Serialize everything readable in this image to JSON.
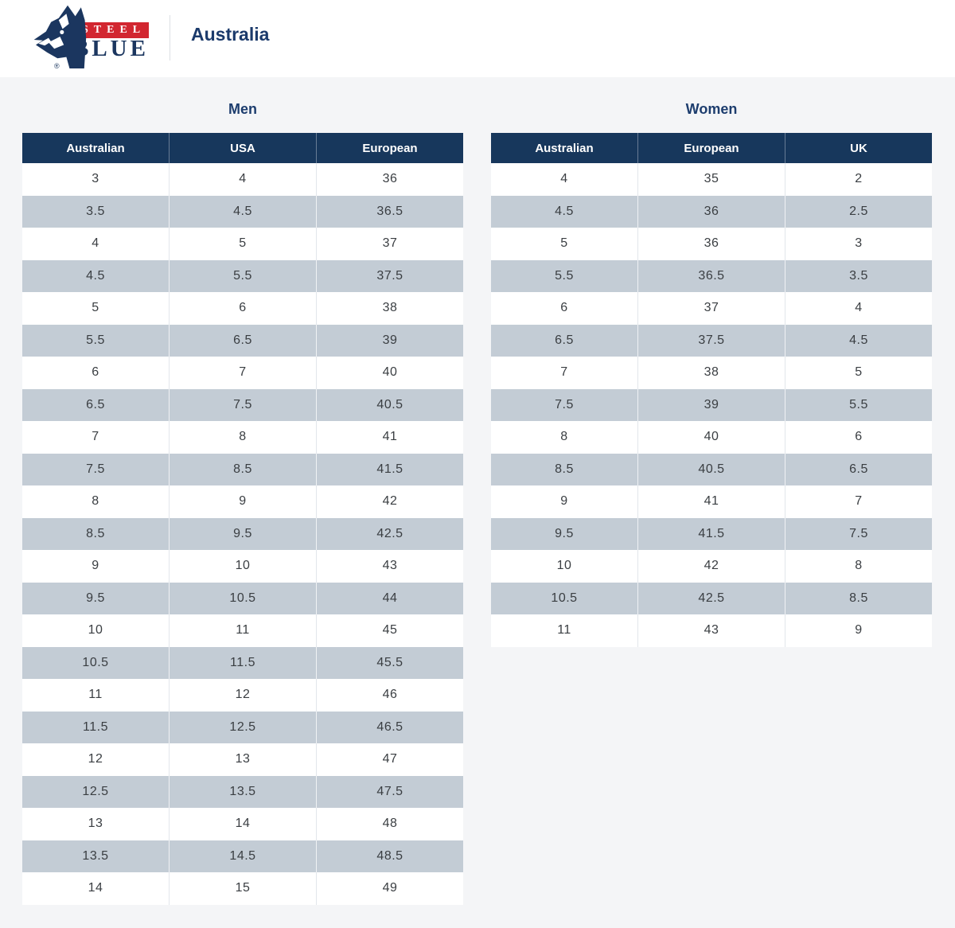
{
  "header": {
    "brand": {
      "steel": "STEEL",
      "blue": "BLUE",
      "registered": "®"
    },
    "region": "Australia"
  },
  "colors": {
    "brand_navy": "#1b365f",
    "brand_red": "#d22630",
    "table_header_bg": "#17375c",
    "alt_row_bg": "#c3ccd5",
    "page_bg": "#f4f5f7",
    "title_text": "#1d3d6e"
  },
  "tables": [
    {
      "title": "Men",
      "columns": [
        "Australian",
        "USA",
        "European"
      ],
      "rows": [
        [
          "3",
          "4",
          "36"
        ],
        [
          "3.5",
          "4.5",
          "36.5"
        ],
        [
          "4",
          "5",
          "37"
        ],
        [
          "4.5",
          "5.5",
          "37.5"
        ],
        [
          "5",
          "6",
          "38"
        ],
        [
          "5.5",
          "6.5",
          "39"
        ],
        [
          "6",
          "7",
          "40"
        ],
        [
          "6.5",
          "7.5",
          "40.5"
        ],
        [
          "7",
          "8",
          "41"
        ],
        [
          "7.5",
          "8.5",
          "41.5"
        ],
        [
          "8",
          "9",
          "42"
        ],
        [
          "8.5",
          "9.5",
          "42.5"
        ],
        [
          "9",
          "10",
          "43"
        ],
        [
          "9.5",
          "10.5",
          "44"
        ],
        [
          "10",
          "11",
          "45"
        ],
        [
          "10.5",
          "11.5",
          "45.5"
        ],
        [
          "11",
          "12",
          "46"
        ],
        [
          "11.5",
          "12.5",
          "46.5"
        ],
        [
          "12",
          "13",
          "47"
        ],
        [
          "12.5",
          "13.5",
          "47.5"
        ],
        [
          "13",
          "14",
          "48"
        ],
        [
          "13.5",
          "14.5",
          "48.5"
        ],
        [
          "14",
          "15",
          "49"
        ]
      ]
    },
    {
      "title": "Women",
      "columns": [
        "Australian",
        "European",
        "UK"
      ],
      "rows": [
        [
          "4",
          "35",
          "2"
        ],
        [
          "4.5",
          "36",
          "2.5"
        ],
        [
          "5",
          "36",
          "3"
        ],
        [
          "5.5",
          "36.5",
          "3.5"
        ],
        [
          "6",
          "37",
          "4"
        ],
        [
          "6.5",
          "37.5",
          "4.5"
        ],
        [
          "7",
          "38",
          "5"
        ],
        [
          "7.5",
          "39",
          "5.5"
        ],
        [
          "8",
          "40",
          "6"
        ],
        [
          "8.5",
          "40.5",
          "6.5"
        ],
        [
          "9",
          "41",
          "7"
        ],
        [
          "9.5",
          "41.5",
          "7.5"
        ],
        [
          "10",
          "42",
          "8"
        ],
        [
          "10.5",
          "42.5",
          "8.5"
        ],
        [
          "11",
          "43",
          "9"
        ]
      ]
    }
  ]
}
